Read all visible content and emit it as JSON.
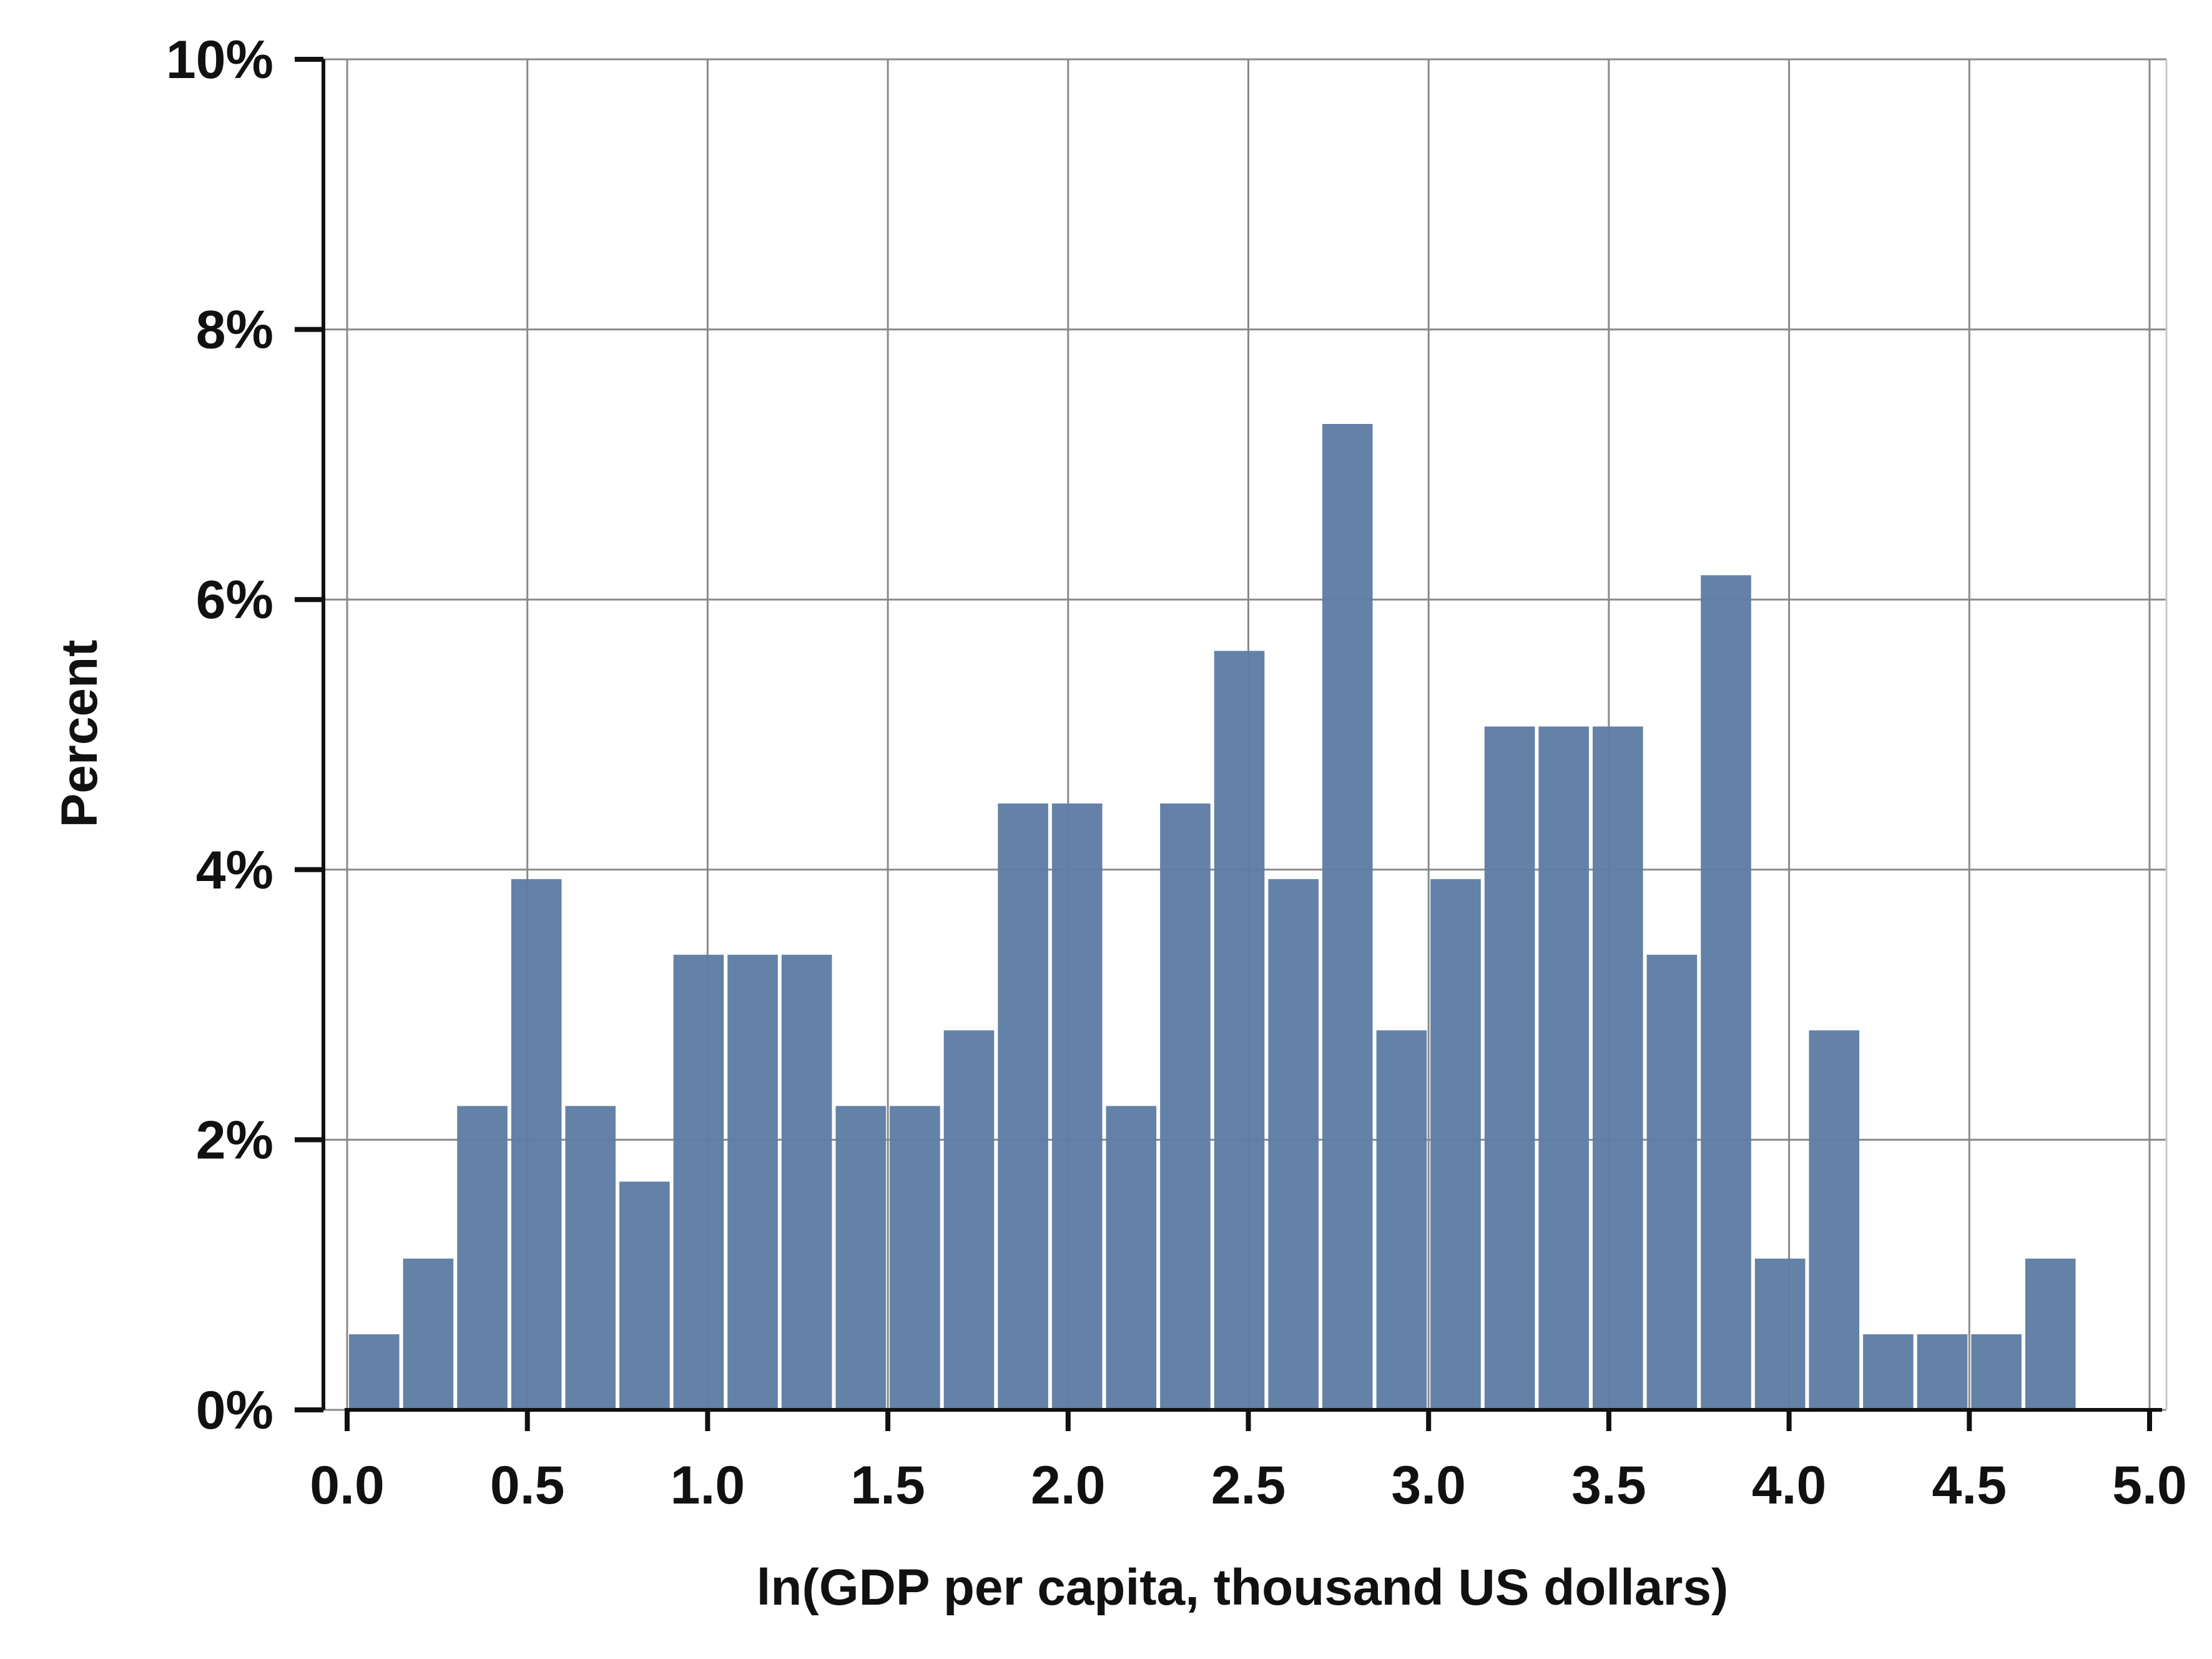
{
  "chart_data": {
    "type": "bar",
    "title": "",
    "xlabel": "ln(GDP per capita, thousand US dollars)",
    "ylabel": "Percent",
    "xlim": [
      0.0,
      5.0
    ],
    "ylim": [
      0,
      10
    ],
    "x_ticks": [
      "0.0",
      "0.5",
      "1.0",
      "1.5",
      "2.0",
      "2.5",
      "3.0",
      "3.5",
      "4.0",
      "4.5",
      "5.0"
    ],
    "y_ticks": [
      "0%",
      "2%",
      "4%",
      "6%",
      "8%",
      "10%"
    ],
    "grid": true,
    "bar_color": "#5f7ea4",
    "bin_width": 0.15,
    "bins_start": [
      0.0,
      0.15,
      0.3,
      0.45,
      0.6,
      0.75,
      0.9,
      1.05,
      1.2,
      1.35,
      1.5,
      1.65,
      1.8,
      1.95,
      2.1,
      2.25,
      2.4,
      2.55,
      2.7,
      2.85,
      3.0,
      3.15,
      3.3,
      3.45,
      3.6,
      3.75,
      3.9,
      4.05,
      4.2,
      4.35,
      4.5,
      4.65
    ],
    "values": [
      0.56,
      1.12,
      2.25,
      3.93,
      2.25,
      1.69,
      3.37,
      3.37,
      3.37,
      2.25,
      2.25,
      2.81,
      4.49,
      4.49,
      2.25,
      4.49,
      5.62,
      3.93,
      7.3,
      2.81,
      3.93,
      5.06,
      5.06,
      5.06,
      3.37,
      6.18,
      1.12,
      2.81,
      0.56,
      0.56,
      0.56,
      1.12
    ]
  }
}
